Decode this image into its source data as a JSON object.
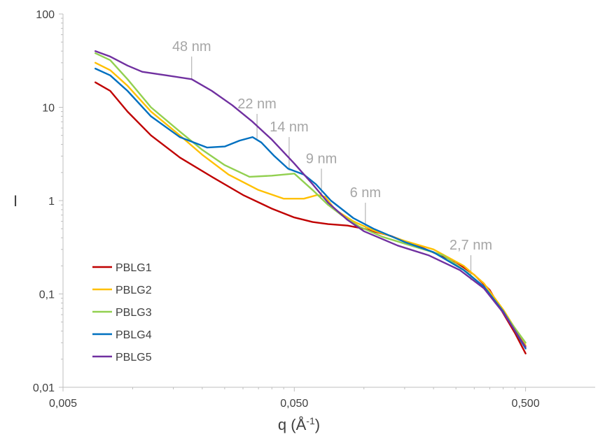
{
  "chart_data": {
    "type": "line",
    "xlabel": "q (Å",
    "xlabel_sup": "-1",
    "xlabel_end": ")",
    "ylabel": "I",
    "x_scale": "log",
    "y_scale": "log",
    "xlim": [
      0.005,
      1.0
    ],
    "ylim": [
      0.01,
      100
    ],
    "grid": false,
    "legend_position": "bottom-left",
    "x_ticks": [
      {
        "value": 0.005,
        "label": "0,005"
      },
      {
        "value": 0.05,
        "label": "0,050"
      },
      {
        "value": 0.5,
        "label": "0,500"
      }
    ],
    "y_ticks": [
      {
        "value": 100,
        "label": "100"
      },
      {
        "value": 10,
        "label": "10"
      },
      {
        "value": 1,
        "label": "1"
      },
      {
        "value": 0.1,
        "label": "0,1"
      },
      {
        "value": 0.01,
        "label": "0,01"
      }
    ],
    "series": [
      {
        "name": "PBLG1",
        "color": "#c00000",
        "points": [
          [
            0.0069,
            18.5
          ],
          [
            0.008,
            15
          ],
          [
            0.0095,
            9
          ],
          [
            0.012,
            5
          ],
          [
            0.016,
            2.9
          ],
          [
            0.022,
            1.8
          ],
          [
            0.03,
            1.15
          ],
          [
            0.04,
            0.82
          ],
          [
            0.05,
            0.66
          ],
          [
            0.06,
            0.59
          ],
          [
            0.07,
            0.56
          ],
          [
            0.085,
            0.54
          ],
          [
            0.1,
            0.5
          ],
          [
            0.13,
            0.42
          ],
          [
            0.18,
            0.31
          ],
          [
            0.25,
            0.22
          ],
          [
            0.3,
            0.16
          ],
          [
            0.35,
            0.11
          ],
          [
            0.4,
            0.062
          ],
          [
            0.45,
            0.038
          ],
          [
            0.5,
            0.023
          ]
        ]
      },
      {
        "name": "PBLG2",
        "color": "#ffc000",
        "points": [
          [
            0.0069,
            30
          ],
          [
            0.008,
            25
          ],
          [
            0.0095,
            17
          ],
          [
            0.012,
            9
          ],
          [
            0.016,
            5
          ],
          [
            0.02,
            3.1
          ],
          [
            0.026,
            1.9
          ],
          [
            0.035,
            1.3
          ],
          [
            0.045,
            1.05
          ],
          [
            0.055,
            1.05
          ],
          [
            0.063,
            1.15
          ],
          [
            0.068,
            1.1
          ],
          [
            0.075,
            0.8
          ],
          [
            0.09,
            0.6
          ],
          [
            0.11,
            0.48
          ],
          [
            0.15,
            0.37
          ],
          [
            0.2,
            0.3
          ],
          [
            0.27,
            0.2
          ],
          [
            0.33,
            0.13
          ],
          [
            0.4,
            0.068
          ],
          [
            0.5,
            0.028
          ]
        ]
      },
      {
        "name": "PBLG3",
        "color": "#92d050",
        "points": [
          [
            0.0069,
            38
          ],
          [
            0.008,
            32
          ],
          [
            0.0095,
            20
          ],
          [
            0.012,
            10
          ],
          [
            0.016,
            5.5
          ],
          [
            0.02,
            3.5
          ],
          [
            0.025,
            2.4
          ],
          [
            0.032,
            1.8
          ],
          [
            0.04,
            1.85
          ],
          [
            0.05,
            1.95
          ],
          [
            0.06,
            1.3
          ],
          [
            0.07,
            0.9
          ],
          [
            0.08,
            0.7
          ],
          [
            0.095,
            0.53
          ],
          [
            0.12,
            0.41
          ],
          [
            0.16,
            0.33
          ],
          [
            0.22,
            0.26
          ],
          [
            0.28,
            0.17
          ],
          [
            0.34,
            0.11
          ],
          [
            0.4,
            0.064
          ],
          [
            0.5,
            0.03
          ]
        ]
      },
      {
        "name": "PBLG4",
        "color": "#0070c0",
        "points": [
          [
            0.0069,
            26
          ],
          [
            0.008,
            22
          ],
          [
            0.0095,
            15
          ],
          [
            0.012,
            8
          ],
          [
            0.016,
            4.8
          ],
          [
            0.021,
            3.7
          ],
          [
            0.025,
            3.8
          ],
          [
            0.029,
            4.4
          ],
          [
            0.033,
            4.8
          ],
          [
            0.036,
            4.2
          ],
          [
            0.041,
            3
          ],
          [
            0.047,
            2.2
          ],
          [
            0.055,
            1.9
          ],
          [
            0.062,
            1.5
          ],
          [
            0.072,
            1
          ],
          [
            0.09,
            0.65
          ],
          [
            0.11,
            0.5
          ],
          [
            0.15,
            0.36
          ],
          [
            0.2,
            0.28
          ],
          [
            0.27,
            0.18
          ],
          [
            0.33,
            0.12
          ],
          [
            0.4,
            0.065
          ],
          [
            0.5,
            0.026
          ]
        ]
      },
      {
        "name": "PBLG5",
        "color": "#7030a0",
        "points": [
          [
            0.0069,
            40
          ],
          [
            0.008,
            35
          ],
          [
            0.0095,
            28
          ],
          [
            0.011,
            24
          ],
          [
            0.014,
            22
          ],
          [
            0.018,
            20
          ],
          [
            0.022,
            15
          ],
          [
            0.027,
            10.5
          ],
          [
            0.033,
            7
          ],
          [
            0.04,
            4.5
          ],
          [
            0.05,
            2.5
          ],
          [
            0.06,
            1.5
          ],
          [
            0.07,
            0.95
          ],
          [
            0.085,
            0.62
          ],
          [
            0.1,
            0.47
          ],
          [
            0.14,
            0.33
          ],
          [
            0.19,
            0.26
          ],
          [
            0.26,
            0.18
          ],
          [
            0.33,
            0.115
          ],
          [
            0.4,
            0.063
          ],
          [
            0.5,
            0.027
          ]
        ]
      }
    ],
    "annotations": [
      {
        "label": "48 nm",
        "x": 0.018,
        "y": 20,
        "y_top": 35
      },
      {
        "label": "22 nm",
        "x": 0.0345,
        "y": 4.6,
        "y_top": 8.5
      },
      {
        "label": "14 nm",
        "x": 0.0475,
        "y": 2.1,
        "y_top": 4.8
      },
      {
        "label": "9 nm",
        "x": 0.0655,
        "y": 1.1,
        "y_top": 2.2
      },
      {
        "label": "6 nm",
        "x": 0.1015,
        "y": 0.5,
        "y_top": 0.95
      },
      {
        "label": "2,7 nm",
        "x": 0.29,
        "y": 0.14,
        "y_top": 0.26
      }
    ]
  }
}
